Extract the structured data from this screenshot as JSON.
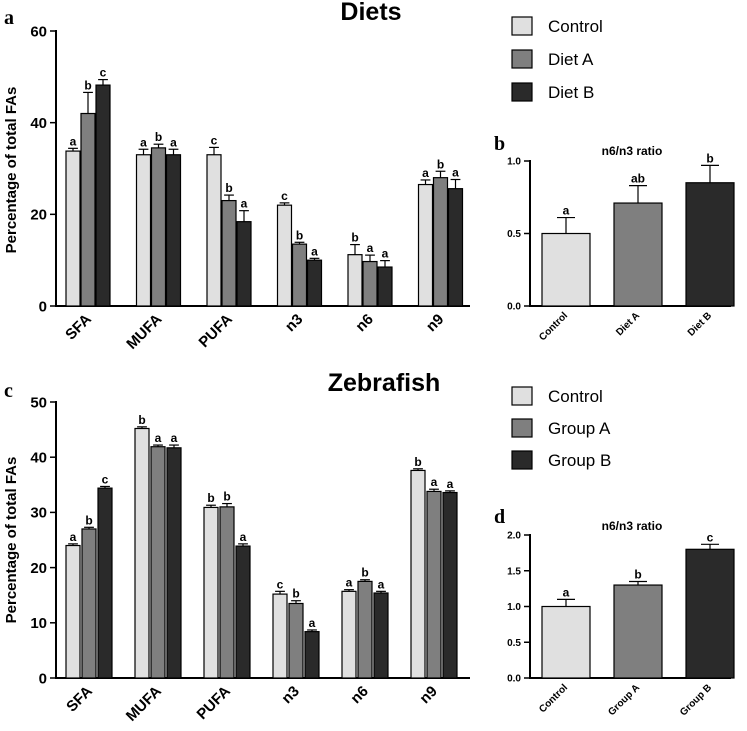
{
  "colors": {
    "c1": "#e0e0e0",
    "c2": "#7f7f7f",
    "c3": "#2a2a2a"
  },
  "chart_data": [
    {
      "id": "a",
      "type": "bar",
      "panel_letter": "a",
      "title": "Diets",
      "ylabel": "Percentage of total FAs",
      "ylim": [
        0,
        60
      ],
      "yticks": [
        "0",
        "20",
        "40",
        "60"
      ],
      "categories": [
        "SFA",
        "MUFA",
        "PUFA",
        "n3",
        "n6",
        "n9"
      ],
      "legend": [
        "Control",
        "Diet A",
        "Diet B"
      ],
      "series": [
        {
          "name": "Control",
          "values": [
            33.8,
            33.0,
            33.0,
            22.0,
            11.2,
            26.5
          ],
          "errors": [
            0.6,
            1.2,
            1.6,
            0.5,
            2.2,
            1.0
          ],
          "sig": [
            "a",
            "a",
            "c",
            "c",
            "b",
            "a"
          ]
        },
        {
          "name": "Diet A",
          "values": [
            42.0,
            34.5,
            23.0,
            13.5,
            9.7,
            28.0
          ],
          "errors": [
            4.6,
            0.8,
            1.2,
            0.4,
            1.4,
            1.4
          ],
          "sig": [
            "b",
            "b",
            "b",
            "b",
            "a",
            "b"
          ]
        },
        {
          "name": "Diet B",
          "values": [
            48.2,
            33.0,
            18.4,
            10.0,
            8.5,
            25.6
          ],
          "errors": [
            1.2,
            1.2,
            2.4,
            0.4,
            1.4,
            2.0
          ],
          "sig": [
            "c",
            "a",
            "a",
            "a",
            "a",
            "a"
          ]
        }
      ]
    },
    {
      "id": "b",
      "type": "bar",
      "panel_letter": "b",
      "title": "n6/n3 ratio",
      "ylim": [
        0,
        1.0
      ],
      "yticks": [
        "0.0",
        "0.5",
        "1.0"
      ],
      "categories": [
        "Control",
        "Diet A",
        "Diet B"
      ],
      "values": [
        0.5,
        0.71,
        0.85
      ],
      "errors": [
        0.11,
        0.12,
        0.12
      ],
      "sig": [
        "a",
        "ab",
        "b"
      ]
    },
    {
      "id": "c",
      "type": "bar",
      "panel_letter": "c",
      "title": "Zebrafish",
      "ylabel": "Percentage of total FAs",
      "ylim": [
        0,
        50
      ],
      "yticks": [
        "0",
        "10",
        "20",
        "30",
        "40",
        "50"
      ],
      "categories": [
        "SFA",
        "MUFA",
        "PUFA",
        "n3",
        "n6",
        "n9"
      ],
      "legend": [
        "Control",
        "Group A",
        "Group B"
      ],
      "series": [
        {
          "name": "Control",
          "values": [
            24.0,
            45.2,
            30.9,
            15.2,
            15.7,
            37.6
          ],
          "errors": [
            0.3,
            0.3,
            0.4,
            0.5,
            0.3,
            0.3
          ],
          "sig": [
            "a",
            "b",
            "b",
            "c",
            "a",
            "b"
          ]
        },
        {
          "name": "Group A",
          "values": [
            27.0,
            41.9,
            31.0,
            13.5,
            17.5,
            33.8
          ],
          "errors": [
            0.3,
            0.3,
            0.6,
            0.5,
            0.3,
            0.4
          ],
          "sig": [
            "b",
            "a",
            "b",
            "b",
            "b",
            "a"
          ]
        },
        {
          "name": "Group B",
          "values": [
            34.4,
            41.7,
            23.9,
            8.4,
            15.4,
            33.6
          ],
          "errors": [
            0.3,
            0.5,
            0.4,
            0.3,
            0.3,
            0.3
          ],
          "sig": [
            "c",
            "a",
            "a",
            "a",
            "a",
            "a"
          ]
        }
      ]
    },
    {
      "id": "d",
      "type": "bar",
      "panel_letter": "d",
      "title": "n6/n3 ratio",
      "ylim": [
        0,
        2.0
      ],
      "yticks": [
        "0.0",
        "0.5",
        "1.0",
        "1.5",
        "2.0"
      ],
      "categories": [
        "Control",
        "Group A",
        "Group B"
      ],
      "values": [
        1.0,
        1.3,
        1.8
      ],
      "errors": [
        0.1,
        0.05,
        0.07
      ],
      "sig": [
        "a",
        "b",
        "c"
      ]
    }
  ]
}
